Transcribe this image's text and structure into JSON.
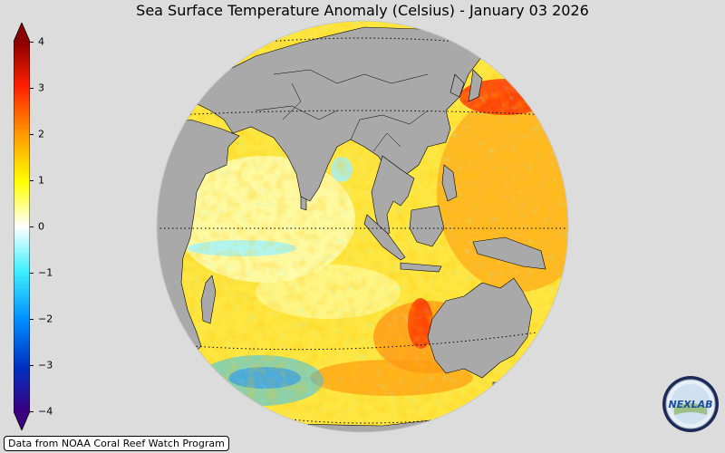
{
  "title": "Sea Surface Temperature Anomaly (Celsius) - January 03 2026",
  "colorbar": {
    "min": -4,
    "max": 4,
    "ticks": [
      {
        "value": 4,
        "label": "4"
      },
      {
        "value": 3,
        "label": "3"
      },
      {
        "value": 2,
        "label": "2"
      },
      {
        "value": 1,
        "label": "1"
      },
      {
        "value": 0,
        "label": "0"
      },
      {
        "value": -1,
        "label": "−1"
      },
      {
        "value": -2,
        "label": "−2"
      },
      {
        "value": -3,
        "label": "−3"
      },
      {
        "value": -4,
        "label": "−4"
      }
    ],
    "colors": [
      "#3a0080",
      "#0030c0",
      "#0090ff",
      "#40f0ff",
      "#ffffff",
      "#ffff00",
      "#ff9900",
      "#ff1e00",
      "#8a0000"
    ]
  },
  "map": {
    "land_color": "#a9a9a9",
    "ocean_neutral_color": "#ffffff"
  },
  "credit": "Data from NOAA Coral Reef Watch Program",
  "logo": {
    "text": "NEXLAB",
    "icon": "nexlab-logo-icon"
  }
}
